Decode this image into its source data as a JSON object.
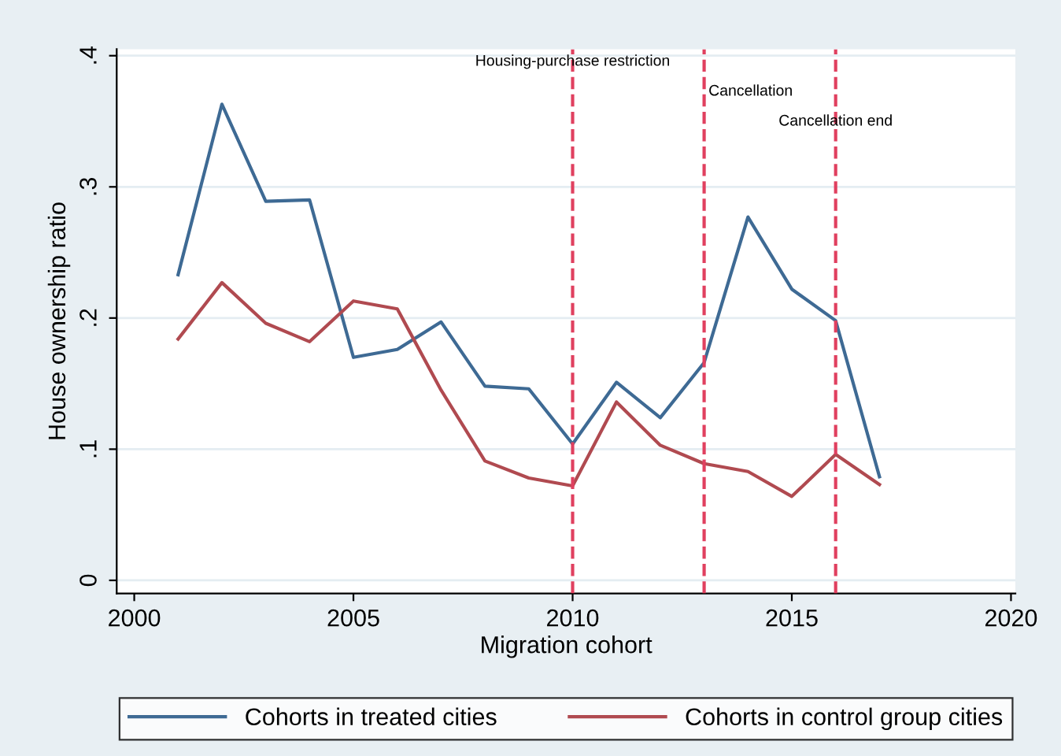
{
  "chart_data": {
    "type": "line",
    "xlabel": "Migration cohort",
    "ylabel": "House ownership ratio",
    "x": [
      2001,
      2002,
      2003,
      2004,
      2005,
      2006,
      2007,
      2008,
      2009,
      2010,
      2011,
      2012,
      2013,
      2014,
      2015,
      2016,
      2017
    ],
    "series": [
      {
        "name": "Cohorts in treated cities",
        "color": "#3e6a94",
        "values": [
          0.233,
          0.363,
          0.289,
          0.29,
          0.17,
          0.176,
          0.197,
          0.148,
          0.146,
          0.104,
          0.151,
          0.124,
          0.166,
          0.277,
          0.222,
          0.198,
          0.079
        ]
      },
      {
        "name": "Cohorts in control group cities",
        "color": "#b04a50",
        "values": [
          0.184,
          0.227,
          0.196,
          0.182,
          0.213,
          0.207,
          0.145,
          0.091,
          0.078,
          0.072,
          0.136,
          0.103,
          0.089,
          0.083,
          0.064,
          0.096,
          0.073
        ]
      }
    ],
    "xlim": [
      1999.6,
      2020.1
    ],
    "xticks": [
      2000,
      2005,
      2010,
      2015,
      2020
    ],
    "ylim": [
      -0.01,
      0.405
    ],
    "yticks": [
      {
        "value": 0,
        "label": "0"
      },
      {
        "value": 0.1,
        "label": ".1"
      },
      {
        "value": 0.2,
        "label": ".2"
      },
      {
        "value": 0.3,
        "label": ".3"
      },
      {
        "value": 0.4,
        "label": ".4"
      }
    ],
    "ref_lines": [
      {
        "axis": "x",
        "value": 2010,
        "label": "Housing-purchase restriction",
        "color": "#e0405f",
        "line_style": "dashed"
      },
      {
        "axis": "x",
        "value": 2013,
        "label": "Cancellation",
        "color": "#e0405f",
        "line_style": "dashed"
      },
      {
        "axis": "x",
        "value": 2016,
        "label": "Cancellation end",
        "color": "#e0405f",
        "line_style": "dashed"
      }
    ],
    "grid": "y",
    "legend": "bottom",
    "marker": "none",
    "line_style": "solid"
  }
}
